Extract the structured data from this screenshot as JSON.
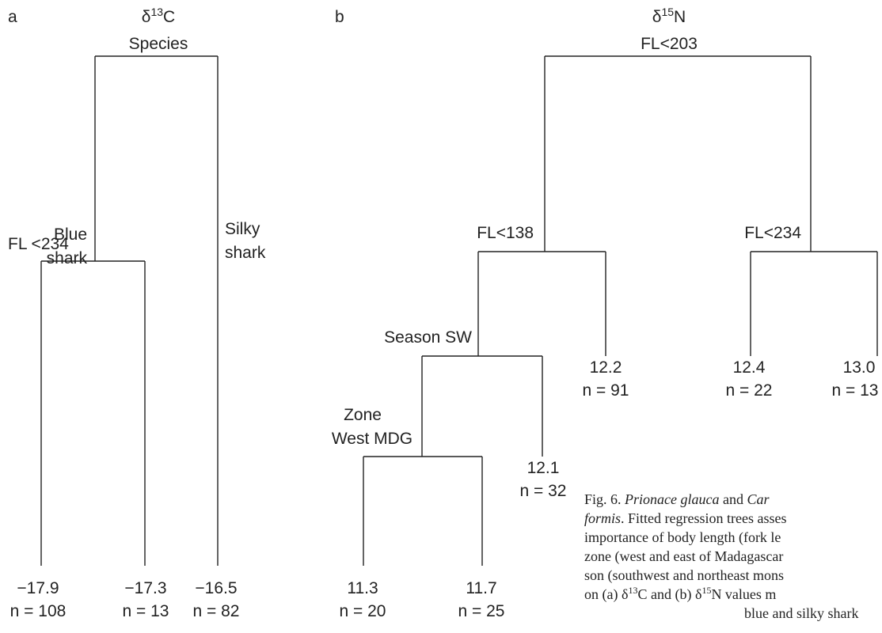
{
  "panel_a": {
    "letter": "a",
    "title_var": "δ",
    "title_sup": "13",
    "title_el": "C",
    "root_split": "Species",
    "left_branch_line1": "Blue",
    "left_branch_line2": "shark",
    "right_branch_line1": "Silky",
    "right_branch_line2": "shark",
    "sub_split": "FL <234",
    "leaves": [
      {
        "value": "−17.9",
        "n": "n = 108"
      },
      {
        "value": "−17.3",
        "n": "n = 13"
      },
      {
        "value": "−16.5",
        "n": "n = 82"
      }
    ]
  },
  "panel_b": {
    "letter": "b",
    "title_var": "δ",
    "title_sup": "15",
    "title_el": "N",
    "root_split": "FL<203",
    "split_left": "FL<138",
    "split_right": "FL<234",
    "split_season": "Season SW",
    "split_zone_line1": "Zone",
    "split_zone_line2": "West MDG",
    "leaves": [
      {
        "value": "11.3",
        "n": "n = 20"
      },
      {
        "value": "11.7",
        "n": "n = 25"
      },
      {
        "value": "12.1",
        "n": "n = 32"
      },
      {
        "value": "12.2",
        "n": "n = 91"
      },
      {
        "value": "12.4",
        "n": "n = 22"
      },
      {
        "value": "13.0",
        "n": "n = 13"
      }
    ]
  },
  "caption": {
    "line1_a": "Fig. 6. ",
    "line1_b": "Prionace glauca",
    "line1_c": " and ",
    "line1_d": "Car",
    "line2_a": "formis",
    "line2_b": ". Fitted regression trees asses",
    "line3": "importance of body length (fork le",
    "line4": "zone (west and east of Madagascar",
    "line5": "son (southwest and northeast mons",
    "line6_a": "on (a) δ",
    "line6_b": "13",
    "line6_c": "C and (b) δ",
    "line6_d": "15",
    "line6_e": "N values m",
    "line7": "blue and silky shark"
  }
}
